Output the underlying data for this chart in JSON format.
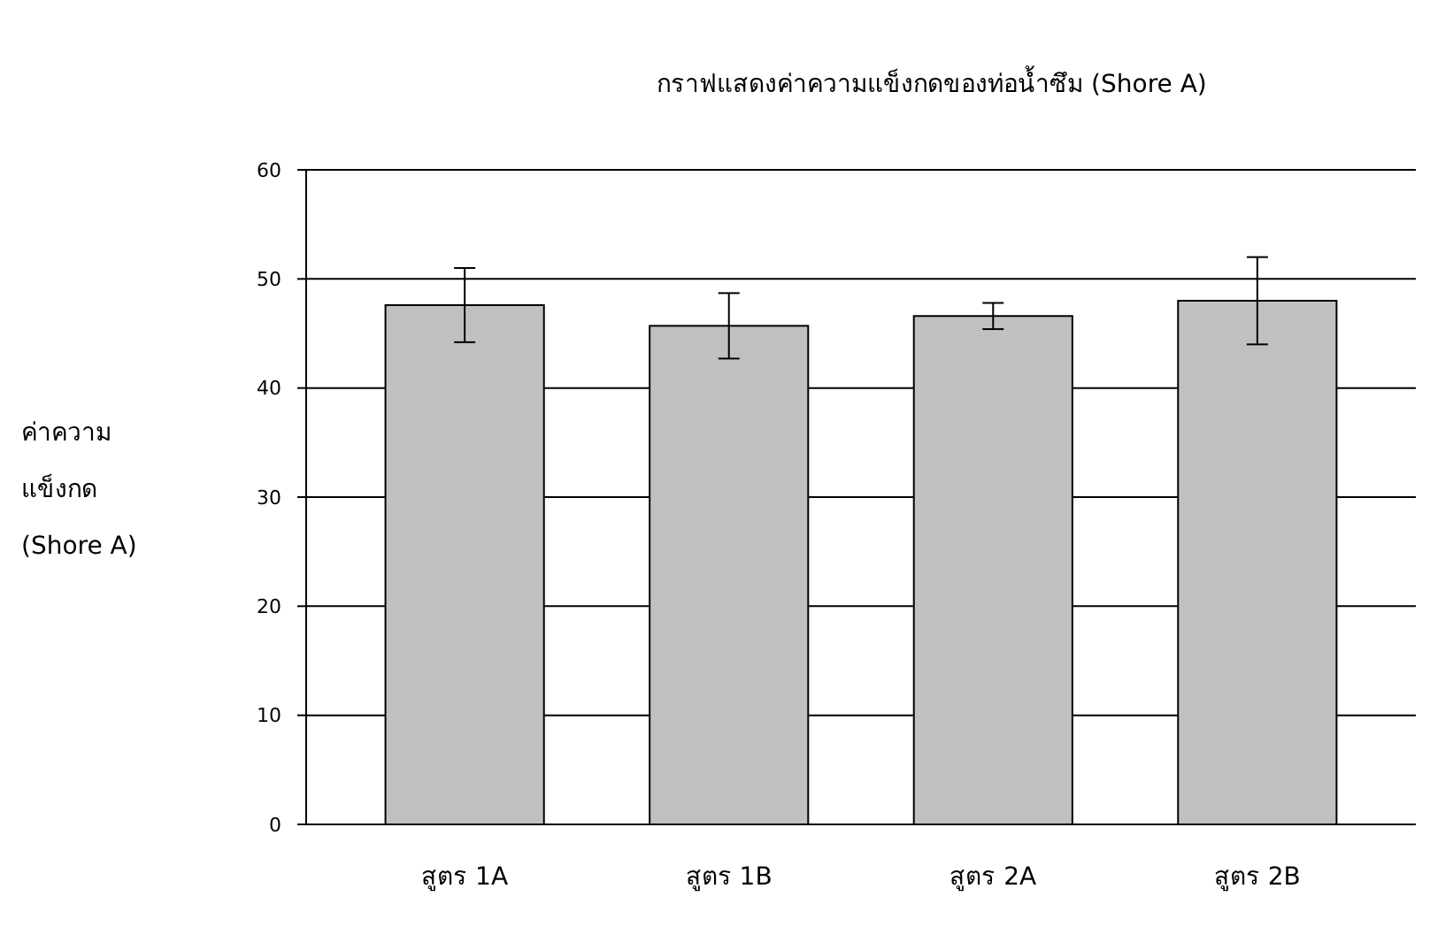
{
  "chart_data": {
    "type": "bar",
    "title": "กราฟแสดงค่าความแข็งกดของท่อน้ำซึม (Shore A)",
    "ylabel": "ค่าความ\nแข็งกด\n(Shore A)",
    "categories": [
      "สูตร 1A",
      "สูตร 1B",
      "สูตร 2A",
      "สูตร 2B"
    ],
    "values": [
      47.6,
      45.7,
      46.6,
      48.0
    ],
    "errors": [
      3.4,
      3.0,
      1.2,
      4.0
    ],
    "color": "#c0c0c0",
    "ylim": [
      0,
      60
    ],
    "yticks": [
      0,
      10,
      20,
      30,
      40,
      50,
      60
    ],
    "grid": "y"
  }
}
